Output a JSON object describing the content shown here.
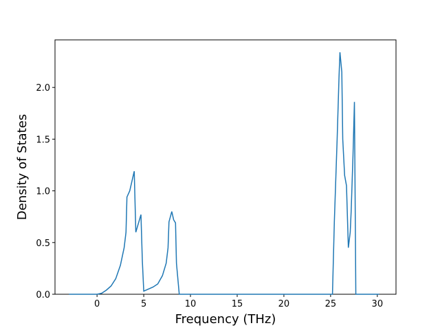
{
  "chart_data": {
    "type": "line",
    "x_label": "Frequency (THz)",
    "y_label": "Density of States",
    "color": "#1f77b4",
    "x": [
      -3,
      0,
      0.5,
      1,
      1.5,
      2,
      2.5,
      2.9,
      3.1,
      3.2,
      3.5,
      3.98,
      4.15,
      4.7,
      4.85,
      5.0,
      6.0,
      6.5,
      7.0,
      7.4,
      7.6,
      7.7,
      8.0,
      8.2,
      8.4,
      8.5,
      8.8,
      25.2,
      25.4,
      25.7,
      25.9,
      26.0,
      26.2,
      26.3,
      26.5,
      26.7,
      26.9,
      27.1,
      27.2,
      27.4,
      27.55,
      27.7,
      30.2
    ],
    "values": [
      0,
      0,
      0.01,
      0.04,
      0.08,
      0.15,
      0.28,
      0.45,
      0.6,
      0.94,
      1.0,
      1.19,
      0.6,
      0.77,
      0.32,
      0.03,
      0.07,
      0.1,
      0.18,
      0.3,
      0.45,
      0.7,
      0.8,
      0.72,
      0.69,
      0.3,
      0,
      0,
      0.7,
      1.5,
      2.1,
      2.34,
      2.15,
      1.5,
      1.15,
      1.05,
      0.45,
      0.6,
      0.8,
      1.35,
      1.86,
      0,
      0
    ],
    "xlim": [
      -4.5,
      32
    ],
    "ylim": [
      0,
      2.46
    ],
    "xticks": [
      0,
      5,
      10,
      15,
      20,
      25,
      30
    ],
    "yticks": [
      {
        "value": 0,
        "label": "0.0"
      },
      0.5,
      {
        "value": 1,
        "label": "1.0"
      },
      1.5,
      {
        "value": 2,
        "label": "2.0"
      }
    ]
  }
}
